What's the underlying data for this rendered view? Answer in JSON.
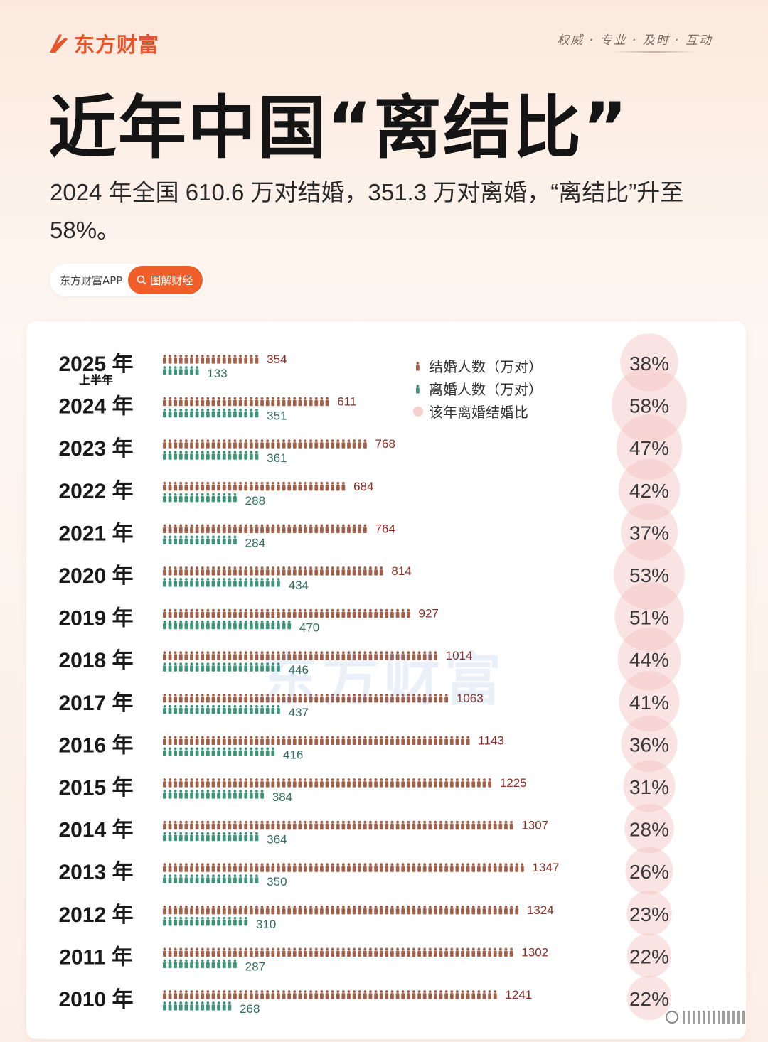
{
  "brand": {
    "name": "东方财富",
    "slogan": "权威 · 专业 · 及时 · 互动",
    "color": "#e8552d"
  },
  "header": {
    "title": "近年中国“离结比”",
    "subtitle": "2024 年全国 610.6 万对结婚，351.3 万对离婚，“离结比”升至 58%。"
  },
  "tag_pill": {
    "app_label": "东方财富APP",
    "button_label": "图解财经"
  },
  "watermark": "东方财富",
  "colors": {
    "marriage": "#a0604a",
    "divorce": "#3f9478",
    "ratio_circle": "#f3c4c2",
    "marriage_label": "#8c2b22",
    "divorce_label": "#2f6e58"
  },
  "chart_data": {
    "type": "pictograph-bar",
    "title": "近年中国“离结比”",
    "legend": [
      {
        "key": "marriage",
        "label": "结婚人数（万对）"
      },
      {
        "key": "divorce",
        "label": "离婚人数（万对）"
      },
      {
        "key": "ratio",
        "label": "该年离婚结婚比"
      }
    ],
    "unit": "万对",
    "categories": [
      {
        "year": "2025 年",
        "note": "上半年"
      },
      {
        "year": "2024 年",
        "note": ""
      },
      {
        "year": "2023 年",
        "note": ""
      },
      {
        "year": "2022 年",
        "note": ""
      },
      {
        "year": "2021 年",
        "note": ""
      },
      {
        "year": "2020 年",
        "note": ""
      },
      {
        "year": "2019 年",
        "note": ""
      },
      {
        "year": "2018 年",
        "note": ""
      },
      {
        "year": "2017 年",
        "note": ""
      },
      {
        "year": "2016 年",
        "note": ""
      },
      {
        "year": "2015 年",
        "note": ""
      },
      {
        "year": "2014 年",
        "note": ""
      },
      {
        "year": "2013 年",
        "note": ""
      },
      {
        "year": "2012 年",
        "note": ""
      },
      {
        "year": "2011 年",
        "note": ""
      },
      {
        "year": "2010 年",
        "note": ""
      }
    ],
    "series": [
      {
        "name": "结婚人数（万对）",
        "values": [
          354,
          611,
          768,
          684,
          764,
          814,
          927,
          1014,
          1063,
          1143,
          1225,
          1307,
          1347,
          1324,
          1302,
          1241
        ]
      },
      {
        "name": "离婚人数（万对）",
        "values": [
          133,
          351,
          361,
          288,
          284,
          434,
          470,
          446,
          437,
          416,
          384,
          364,
          350,
          310,
          287,
          268
        ]
      },
      {
        "name": "该年离婚结婚比",
        "values": [
          38,
          58,
          47,
          42,
          37,
          53,
          51,
          44,
          41,
          36,
          31,
          28,
          26,
          23,
          22,
          22
        ],
        "unit": "%"
      }
    ]
  }
}
